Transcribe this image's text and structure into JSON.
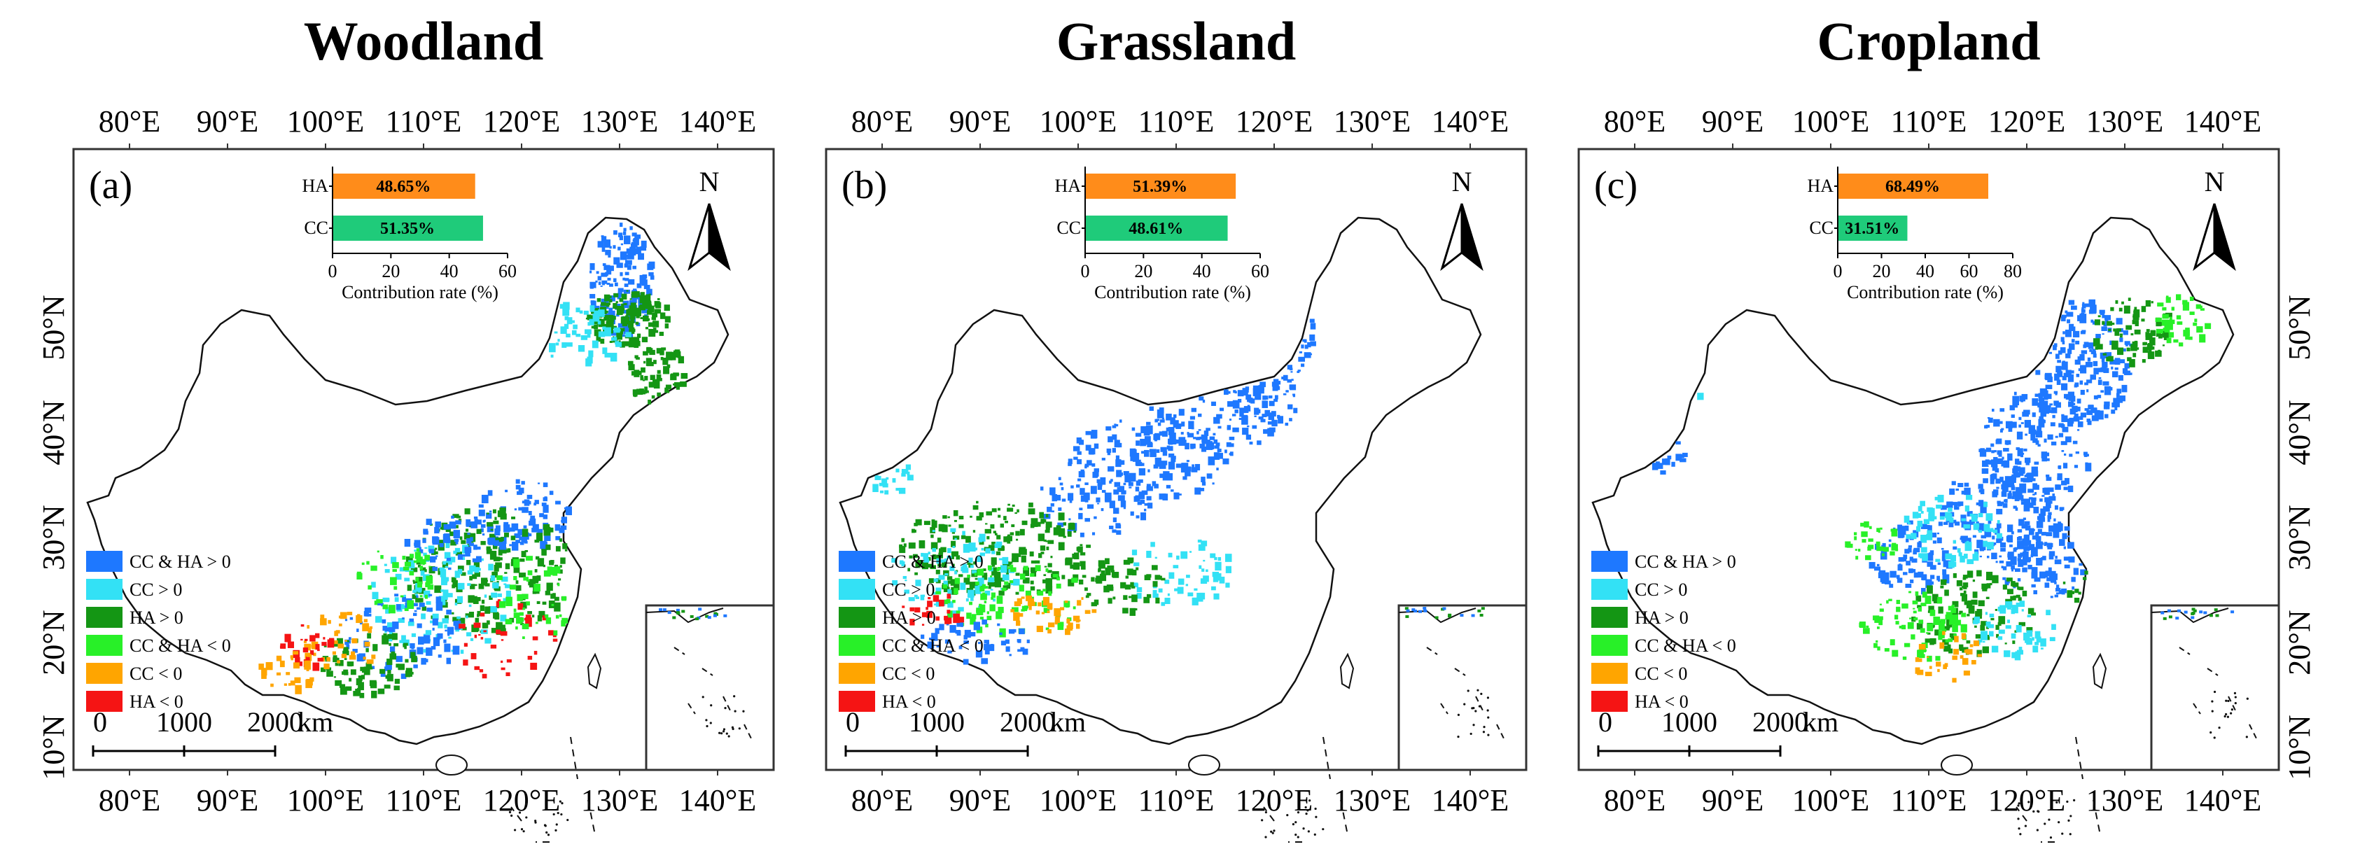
{
  "figure": {
    "panels": [
      {
        "title": "Woodland",
        "label": "(a)",
        "top_lon_ticks": [
          "80°E",
          "90°E",
          "100°E",
          "110°E",
          "120°E",
          "130°E",
          "140°E"
        ],
        "bottom_lon_ticks": [
          "80°E",
          "90°E",
          "100°E",
          "110°E",
          "120°E",
          "130°E",
          "140°E"
        ],
        "lat_ticks": [
          "10°N",
          "20°N",
          "30°N",
          "40°N",
          "50°N"
        ],
        "lat_side": "left",
        "north_label": "N",
        "scale_bar": {
          "labels": [
            "0",
            "1000",
            "2000"
          ],
          "unit": "km"
        },
        "legend": [
          {
            "label": "CC & HA > 0",
            "color": "#1E78FF"
          },
          {
            "label": "CC > 0",
            "color": "#33E1F5"
          },
          {
            "label": "HA > 0",
            "color": "#149614"
          },
          {
            "label": "CC & HA < 0",
            "color": "#28F028"
          },
          {
            "label": "CC < 0",
            "color": "#FFA500"
          },
          {
            "label": "HA < 0",
            "color": "#F51414"
          }
        ],
        "inset_chart": {
          "type": "bar",
          "categories": [
            "HA",
            "CC"
          ],
          "values": [
            48.65,
            51.35
          ],
          "value_labels": [
            "48.65%",
            "51.35%"
          ],
          "colors": [
            "#FF8C1A",
            "#1FCB7A"
          ],
          "xlabel": "Contribution rate (%)",
          "xticks": [
            "0",
            "20",
            "40",
            "60"
          ],
          "xlim": [
            0,
            60
          ]
        }
      },
      {
        "title": "Grassland",
        "label": "(b)",
        "top_lon_ticks": [
          "80°E",
          "90°E",
          "100°E",
          "110°E",
          "120°E",
          "130°E",
          "140°E"
        ],
        "bottom_lon_ticks": [
          "80°E",
          "90°E",
          "100°E",
          "110°E",
          "120°E",
          "130°E",
          "140°E"
        ],
        "lat_ticks": [],
        "lat_side": "none",
        "north_label": "N",
        "scale_bar": {
          "labels": [
            "0",
            "1000",
            "2000"
          ],
          "unit": "km"
        },
        "legend": [
          {
            "label": "CC & HA > 0",
            "color": "#1E78FF"
          },
          {
            "label": "CC > 0",
            "color": "#33E1F5"
          },
          {
            "label": "HA > 0",
            "color": "#149614"
          },
          {
            "label": "CC & HA < 0",
            "color": "#28F028"
          },
          {
            "label": "CC < 0",
            "color": "#FFA500"
          },
          {
            "label": "HA < 0",
            "color": "#F51414"
          }
        ],
        "inset_chart": {
          "type": "bar",
          "categories": [
            "HA",
            "CC"
          ],
          "values": [
            51.39,
            48.61
          ],
          "value_labels": [
            "51.39%",
            "48.61%"
          ],
          "colors": [
            "#FF8C1A",
            "#1FCB7A"
          ],
          "xlabel": "Contribution rate (%)",
          "xticks": [
            "0",
            "20",
            "40",
            "60"
          ],
          "xlim": [
            0,
            60
          ]
        }
      },
      {
        "title": "Cropland",
        "label": "(c)",
        "top_lon_ticks": [
          "80°E",
          "90°E",
          "100°E",
          "110°E",
          "120°E",
          "130°E",
          "140°E"
        ],
        "bottom_lon_ticks": [
          "80°E",
          "90°E",
          "100°E",
          "110°E",
          "120°E",
          "130°E",
          "140°E"
        ],
        "lat_ticks": [
          "10°N",
          "20°N",
          "30°N",
          "40°N",
          "50°N"
        ],
        "lat_side": "right",
        "north_label": "N",
        "scale_bar": {
          "labels": [
            "0",
            "1000",
            "2000"
          ],
          "unit": "km"
        },
        "legend": [
          {
            "label": "CC & HA > 0",
            "color": "#1E78FF"
          },
          {
            "label": "CC > 0",
            "color": "#33E1F5"
          },
          {
            "label": "HA > 0",
            "color": "#149614"
          },
          {
            "label": "CC & HA < 0",
            "color": "#28F028"
          },
          {
            "label": "CC < 0",
            "color": "#FFA500"
          },
          {
            "label": "HA < 0",
            "color": "#F51414"
          }
        ],
        "inset_chart": {
          "type": "bar",
          "categories": [
            "HA",
            "CC"
          ],
          "values": [
            68.49,
            31.51
          ],
          "value_labels": [
            "68.49%",
            "31.51%"
          ],
          "colors": [
            "#FF8C1A",
            "#1FCB7A"
          ],
          "xlabel": "Contribution rate (%)",
          "xticks": [
            "0",
            "20",
            "40",
            "60",
            "80"
          ],
          "xlim": [
            0,
            80
          ]
        }
      }
    ]
  }
}
